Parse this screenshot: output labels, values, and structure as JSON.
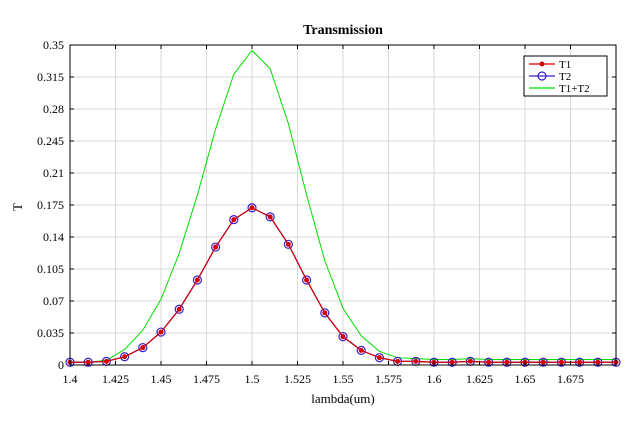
{
  "chart_data": {
    "type": "line",
    "title": "Transmission",
    "xlabel": "lambda(um)",
    "ylabel": "T",
    "xlim": [
      1.4,
      1.7
    ],
    "ylim": [
      0,
      0.35
    ],
    "grid": true,
    "legend_position": "top-right",
    "x_ticks": [
      "1.4",
      "1.425",
      "1.45",
      "1.475",
      "1.5",
      "1.525",
      "1.55",
      "1.575",
      "1.6",
      "1.625",
      "1.65",
      "1.675"
    ],
    "y_ticks": [
      "0",
      "0.035",
      "0.07",
      "0.105",
      "0.14",
      "0.175",
      "0.21",
      "0.245",
      "0.28",
      "0.315",
      "0.35"
    ],
    "x_tick_values": [
      1.4,
      1.425,
      1.45,
      1.475,
      1.5,
      1.525,
      1.55,
      1.575,
      1.6,
      1.625,
      1.65,
      1.675
    ],
    "y_tick_values": [
      0,
      0.035,
      0.07,
      0.105,
      0.14,
      0.175,
      0.21,
      0.245,
      0.28,
      0.315,
      0.35
    ],
    "x": [
      1.4,
      1.41,
      1.42,
      1.43,
      1.44,
      1.45,
      1.46,
      1.47,
      1.48,
      1.49,
      1.5,
      1.51,
      1.52,
      1.53,
      1.54,
      1.55,
      1.56,
      1.57,
      1.58,
      1.59,
      1.6,
      1.61,
      1.62,
      1.63,
      1.64,
      1.65,
      1.66,
      1.67,
      1.68,
      1.69,
      1.7
    ],
    "series": [
      {
        "name": "T1",
        "color": "#d40000",
        "marker": "dot",
        "values": [
          0.003,
          0.003,
          0.004,
          0.009,
          0.019,
          0.036,
          0.061,
          0.093,
          0.129,
          0.159,
          0.172,
          0.162,
          0.132,
          0.093,
          0.057,
          0.031,
          0.016,
          0.008,
          0.004,
          0.004,
          0.003,
          0.003,
          0.004,
          0.003,
          0.003,
          0.003,
          0.003,
          0.003,
          0.003,
          0.003,
          0.003
        ]
      },
      {
        "name": "T2",
        "color": "#3a20c8",
        "marker": "circle",
        "values": [
          0.003,
          0.003,
          0.004,
          0.009,
          0.019,
          0.036,
          0.061,
          0.093,
          0.129,
          0.159,
          0.172,
          0.162,
          0.132,
          0.093,
          0.057,
          0.031,
          0.016,
          0.008,
          0.004,
          0.004,
          0.003,
          0.003,
          0.004,
          0.003,
          0.003,
          0.003,
          0.003,
          0.003,
          0.003,
          0.003,
          0.003
        ]
      },
      {
        "name": "T1+T2",
        "color": "#00dd00",
        "marker": "none",
        "values": [
          0.003,
          0.003,
          0.005,
          0.017,
          0.038,
          0.072,
          0.122,
          0.186,
          0.258,
          0.318,
          0.344,
          0.324,
          0.264,
          0.186,
          0.114,
          0.062,
          0.032,
          0.015,
          0.008,
          0.007,
          0.006,
          0.006,
          0.007,
          0.006,
          0.006,
          0.006,
          0.006,
          0.006,
          0.006,
          0.006,
          0.006
        ]
      }
    ]
  }
}
